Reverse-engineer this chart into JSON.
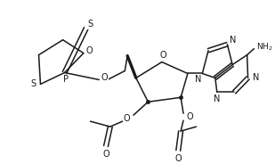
{
  "background": "#ffffff",
  "lc": "#1a1a1a",
  "lw": 1.1,
  "figsize": [
    3.09,
    1.84
  ],
  "dpi": 100,
  "xlim": [
    0,
    309
  ],
  "ylim": [
    0,
    184
  ]
}
